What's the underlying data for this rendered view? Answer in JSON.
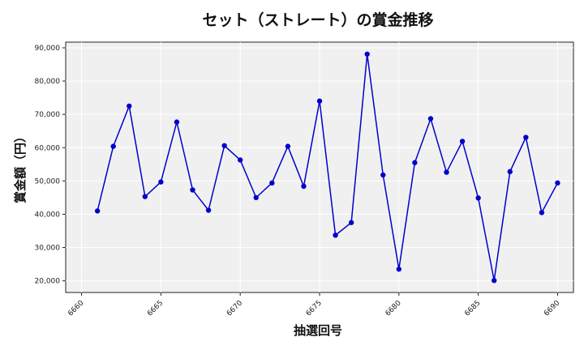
{
  "chart_data": {
    "type": "line",
    "title": "セット（ストレート）の賞金推移",
    "xlabel": "抽選回号",
    "ylabel": "賞金額（円）",
    "xlim": [
      6659,
      6691
    ],
    "ylim": [
      16500,
      91700
    ],
    "x_ticks": [
      6660,
      6665,
      6670,
      6675,
      6680,
      6685,
      6690
    ],
    "y_ticks": [
      20000,
      30000,
      40000,
      50000,
      60000,
      70000,
      80000,
      90000
    ],
    "x_tick_labels": [
      "6660",
      "6665",
      "6670",
      "6675",
      "6680",
      "6685",
      "6690"
    ],
    "y_tick_labels": [
      "20,000",
      "30,000",
      "40,000",
      "50,000",
      "60,000",
      "70,000",
      "80,000",
      "90,000"
    ],
    "grid": true,
    "series": [
      {
        "color": "#0000cc",
        "x": [
          6661,
          6662,
          6663,
          6664,
          6665,
          6666,
          6667,
          6668,
          6669,
          6670,
          6671,
          6672,
          6673,
          6674,
          6675,
          6676,
          6677,
          6678,
          6679,
          6680,
          6681,
          6682,
          6683,
          6684,
          6685,
          6686,
          6687,
          6688,
          6689,
          6690
        ],
        "values": [
          41000,
          60400,
          72500,
          45300,
          49700,
          67700,
          47300,
          41200,
          60600,
          56300,
          45000,
          49400,
          60400,
          48400,
          74000,
          33700,
          37500,
          88100,
          51800,
          23500,
          55500,
          68700,
          52600,
          61900,
          44900,
          20100,
          52800,
          63100,
          40500,
          49400
        ]
      }
    ]
  }
}
